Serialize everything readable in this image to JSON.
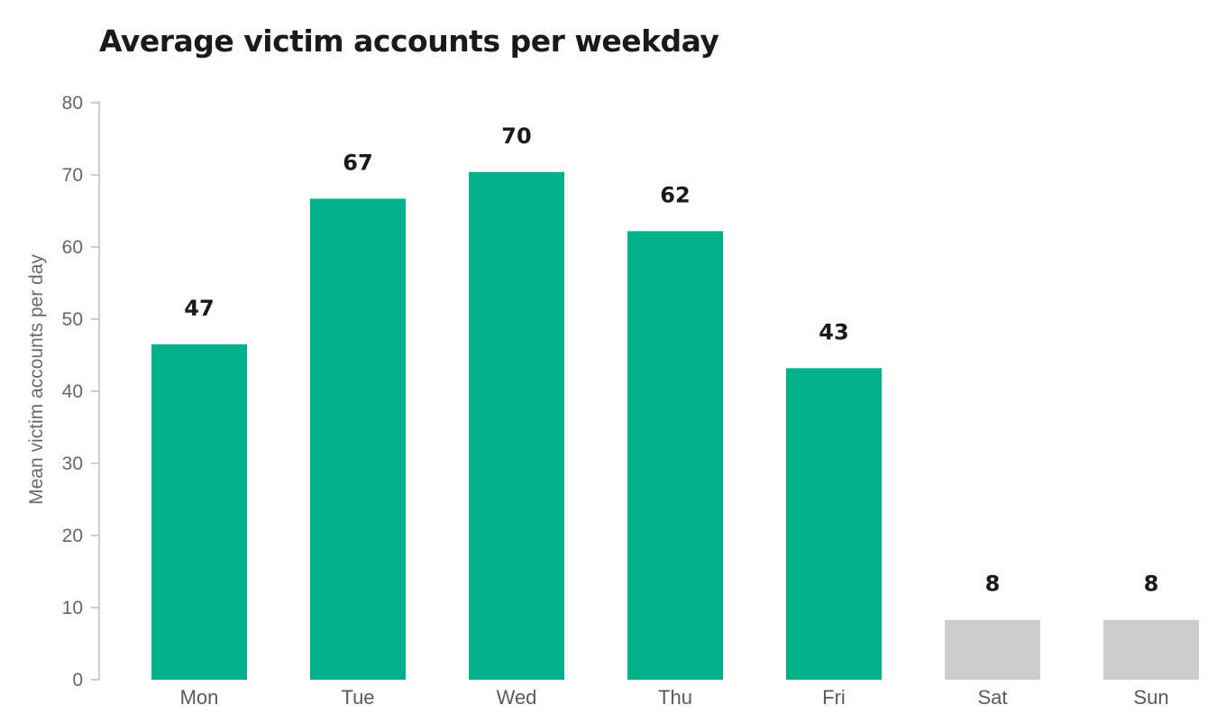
{
  "chart_data": {
    "type": "bar",
    "title": "Average victim accounts per weekday",
    "xlabel": "",
    "ylabel": "Mean victim accounts per day",
    "ylim": [
      0,
      80
    ],
    "yticks": [
      0,
      10,
      20,
      30,
      40,
      50,
      60,
      70,
      80
    ],
    "categories": [
      "Mon",
      "Tue",
      "Wed",
      "Thu",
      "Fri",
      "Sat",
      "Sun"
    ],
    "values": [
      46.5,
      66.7,
      70.4,
      62.2,
      43.2,
      8.3,
      8.3
    ],
    "data_labels": [
      "47",
      "67",
      "70",
      "62",
      "43",
      "8",
      "8"
    ],
    "bar_colors": [
      "#00b189",
      "#00b189",
      "#00b189",
      "#00b189",
      "#00b189",
      "#cbcdcc",
      "#cbcdcc"
    ],
    "grid": false,
    "legend": "none"
  }
}
